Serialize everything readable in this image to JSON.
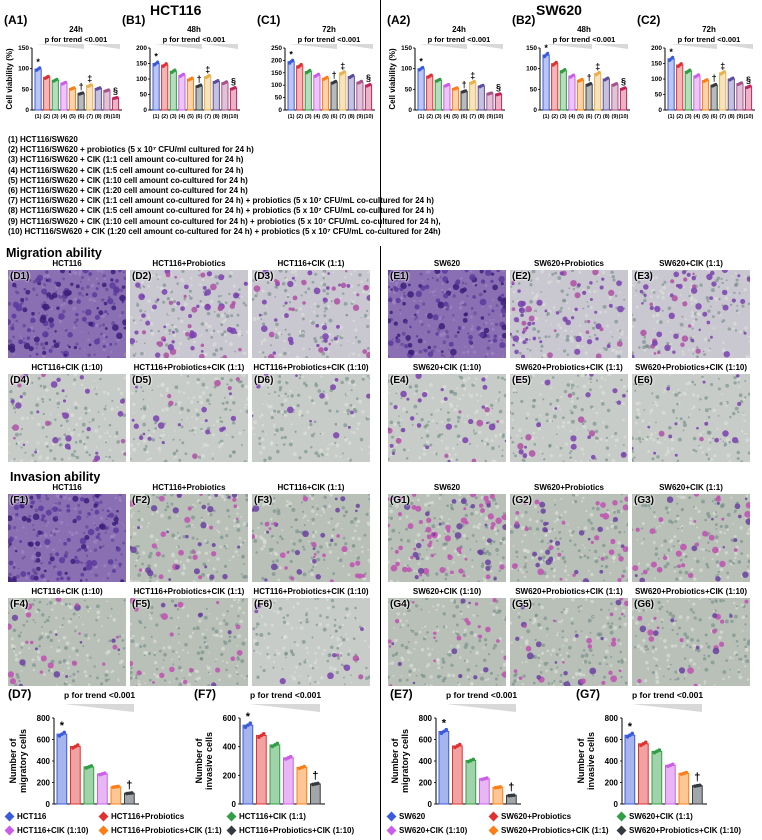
{
  "header": {
    "left_title": "HCT116",
    "right_title": "SW620"
  },
  "viability": {
    "ylabel": "Cell viability (%)",
    "trend_text": "p for trend <0.001",
    "colors": [
      "#3b5bdb",
      "#e03131",
      "#2f9e44",
      "#cc5de8",
      "#fd7e14",
      "#343a40",
      "#e8b04a",
      "#5c4d9e",
      "#a8528b",
      "#c2255c"
    ],
    "panels": [
      {
        "label": "(A1)",
        "time": "24h",
        "ylim": [
          0,
          150
        ],
        "yticks": [
          0,
          50,
          100,
          150
        ],
        "values": [
          99,
          79,
          72,
          65,
          52,
          40,
          59,
          52,
          47,
          29
        ],
        "marks": {
          "0": "*",
          "5": "†",
          "6": "‡",
          "9": "§"
        }
      },
      {
        "label": "(B1)",
        "time": "48h",
        "ylim": [
          0,
          200
        ],
        "yticks": [
          0,
          50,
          100,
          150,
          200
        ],
        "values": [
          150,
          145,
          125,
          112,
          100,
          78,
          108,
          92,
          88,
          70
        ],
        "marks": {
          "0": "*",
          "5": "†",
          "6": "‡",
          "9": "§"
        }
      },
      {
        "label": "(C1)",
        "time": "72h",
        "ylim": [
          0,
          250
        ],
        "yticks": [
          0,
          50,
          100,
          150,
          200,
          250
        ],
        "values": [
          195,
          178,
          155,
          140,
          128,
          112,
          150,
          135,
          112,
          100
        ],
        "marks": {
          "0": "*",
          "5": "†",
          "6": "‡",
          "9": "§"
        }
      },
      {
        "label": "(A2)",
        "time": "24h",
        "ylim": [
          0,
          150
        ],
        "yticks": [
          0,
          50,
          100,
          150
        ],
        "values": [
          100,
          82,
          72,
          60,
          52,
          45,
          67,
          58,
          40,
          38
        ],
        "marks": {
          "0": "*",
          "5": "†",
          "6": "‡",
          "9": "§"
        }
      },
      {
        "label": "(B2)",
        "time": "48h",
        "ylim": [
          0,
          150
        ],
        "yticks": [
          0,
          50,
          100,
          150
        ],
        "values": [
          133,
          112,
          95,
          82,
          72,
          62,
          88,
          75,
          62,
          52
        ],
        "marks": {
          "0": "*",
          "5": "†",
          "6": "‡",
          "9": "§"
        }
      },
      {
        "label": "(C2)",
        "time": "72h",
        "ylim": [
          0,
          200
        ],
        "yticks": [
          0,
          50,
          100,
          150,
          200
        ],
        "values": [
          165,
          145,
          125,
          110,
          95,
          80,
          120,
          100,
          85,
          75
        ],
        "marks": {
          "0": "*",
          "5": "†",
          "6": "‡",
          "9": "§"
        }
      }
    ],
    "xticks": [
      "(1)",
      "(2)",
      "(3)",
      "(4)",
      "(5)",
      "(6)",
      "(7)",
      "(8)",
      "(9)",
      "(10)"
    ]
  },
  "legend_lines": [
    "(1) HCT116/SW620",
    "(2) HCT116/SW620 + probiotics (5 x 10⁷ CFU/ml cultured for 24 h)",
    "(3) HCT116/SW620 + CIK (1:1 cell amount co-cultured for 24 h)",
    "(4) HCT116/SW620 + CIK (1:5 cell amount co-cultured for 24 h)",
    "(5) HCT116/SW620 + CIK (1:10 cell amount co-cultured for 24 h)",
    "(6) HCT116/SW620 + CIK (1:20 cell amount co-cultured for 24 h)",
    "(7) HCT116/SW620 + CIK (1:1 cell amount co-cultured for 24 h) + probiotics (5 x 10⁷ CFU/mL co-cultured for 24 h)",
    "(8) HCT116/SW620 + CIK (1:5 cell amount co-cultured for 24 h) + probiotics (5 x 10⁷ CFU/mL co-cultured for 24 h)",
    "(9) HCT116/SW620 + CIK (1:10 cell amount co-cultured for 24 h) + probiotics (5 x 10⁷ CFU/mL co-cultured for 24 h),",
    "(10) HCT116/SW620 + CIK (1:20 cell amount co-cultured for 24 h) + probiotics (5 x 10⁷ CFU/mL co-cultured for 24h)"
  ],
  "migration": {
    "title": "Migration ability",
    "left": [
      {
        "label": "(D1)",
        "caption": "HCT116",
        "density": 0.95,
        "tone": "dense"
      },
      {
        "label": "(D2)",
        "caption": "HCT116+Probiotics",
        "density": 0.55,
        "tone": "mid"
      },
      {
        "label": "(D3)",
        "caption": "HCT116+CIK (1:1)",
        "density": 0.45,
        "tone": "mid"
      },
      {
        "label": "(D4)",
        "caption": "HCT116+CIK (1:10)",
        "density": 0.3,
        "tone": "sparse"
      },
      {
        "label": "(D5)",
        "caption": "HCT116+Probiotics+CIK (1:1)",
        "density": 0.2,
        "tone": "sparse"
      },
      {
        "label": "(D6)",
        "caption": "HCT116+Probiotics+CIK (1:10)",
        "density": 0.12,
        "tone": "sparse"
      }
    ],
    "right": [
      {
        "label": "(E1)",
        "caption": "SW620",
        "density": 0.95,
        "tone": "dense"
      },
      {
        "label": "(E2)",
        "caption": "SW620+Probiotics",
        "density": 0.55,
        "tone": "mid"
      },
      {
        "label": "(E3)",
        "caption": "SW620+CIK (1:1)",
        "density": 0.5,
        "tone": "mid"
      },
      {
        "label": "(E4)",
        "caption": "SW620+CIK (1:10)",
        "density": 0.3,
        "tone": "sparse"
      },
      {
        "label": "(E5)",
        "caption": "SW620+Probiotics+CIK (1:1)",
        "density": 0.2,
        "tone": "sparse"
      },
      {
        "label": "(E6)",
        "caption": "SW620+Probiotics+CIK (1:10)",
        "density": 0.15,
        "tone": "sparse"
      }
    ]
  },
  "invasion": {
    "title": "Invasion ability",
    "left": [
      {
        "label": "(F1)",
        "caption": "HCT116",
        "density": 0.95,
        "tone": "dense"
      },
      {
        "label": "(F2)",
        "caption": "HCT116+Probiotics",
        "density": 0.4,
        "tone": "pink"
      },
      {
        "label": "(F3)",
        "caption": "HCT116+CIK (1:1)",
        "density": 0.35,
        "tone": "pink"
      },
      {
        "label": "(F4)",
        "caption": "HCT116+CIK (1:10)",
        "density": 0.25,
        "tone": "pink"
      },
      {
        "label": "(F5)",
        "caption": "HCT116+Probiotics+CIK (1:1)",
        "density": 0.2,
        "tone": "pink"
      },
      {
        "label": "(F6)",
        "caption": "HCT116+Probiotics+CIK (1:10)",
        "density": 0.1,
        "tone": "sparse"
      }
    ],
    "right": [
      {
        "label": "(G1)",
        "caption": "SW620",
        "density": 0.7,
        "tone": "pink"
      },
      {
        "label": "(G2)",
        "caption": "SW620+Probiotics",
        "density": 0.45,
        "tone": "pink"
      },
      {
        "label": "(G3)",
        "caption": "SW620+CIK (1:1)",
        "density": 0.35,
        "tone": "pink"
      },
      {
        "label": "(G4)",
        "caption": "SW620+CIK (1:10)",
        "density": 0.25,
        "tone": "pink"
      },
      {
        "label": "(G5)",
        "caption": "SW620+Probiotics+CIK (1:1)",
        "density": 0.3,
        "tone": "pink"
      },
      {
        "label": "(G6)",
        "caption": "SW620+Probiotics+CIK (1:10)",
        "density": 0.2,
        "tone": "pink"
      }
    ]
  },
  "chart_data": [
    {
      "type": "bar",
      "label": "(D7)",
      "title": "p for trend <0.001",
      "ylabel": "Number of migratory cells",
      "ylim": [
        0,
        800
      ],
      "yticks": [
        0,
        200,
        400,
        600,
        800
      ],
      "values": [
        650,
        535,
        345,
        280,
        160,
        100
      ],
      "marks": {
        "0": "*",
        "5": "†"
      }
    },
    {
      "type": "bar",
      "label": "(F7)",
      "title": "p for trend <0.001",
      "ylabel": "Number of invasive cells",
      "ylim": [
        0,
        600
      ],
      "yticks": [
        0,
        200,
        400,
        600
      ],
      "values": [
        550,
        478,
        412,
        322,
        255,
        140
      ],
      "marks": {
        "0": "*",
        "5": "†"
      }
    },
    {
      "type": "bar",
      "label": "(E7)",
      "title": "p for trend <0.001",
      "ylabel": "Number of migratory cells",
      "ylim": [
        0,
        800
      ],
      "yticks": [
        0,
        200,
        400,
        600,
        800
      ],
      "values": [
        675,
        540,
        405,
        235,
        155,
        80
      ],
      "marks": {
        "0": "*",
        "5": "†"
      }
    },
    {
      "type": "bar",
      "label": "(G7)",
      "title": "p for trend <0.001",
      "ylabel": "Number of invasive cells",
      "ylim": [
        0,
        800
      ],
      "yticks": [
        0,
        200,
        400,
        600,
        800
      ],
      "values": [
        640,
        560,
        490,
        360,
        285,
        170
      ],
      "marks": {
        "0": "*",
        "5": "†"
      }
    }
  ],
  "bottom_colors": [
    "#3b5bdb",
    "#e03131",
    "#2f9e44",
    "#cc5de8",
    "#fd7e14",
    "#343a40"
  ],
  "bottom_legend": {
    "left": [
      "HCT116",
      "HCT116+Probiotics",
      "HCT116+CIK (1:1)",
      "HCT116+CIK (1:10)",
      "HCT116+Probiotics+CIK (1:1)",
      "HCT116+Probiotics+CIK (1:10)"
    ],
    "right": [
      "SW620",
      "SW620+Probiotics",
      "SW620+CIK (1:1)",
      "SW620+CIK (1:10)",
      "SW620+Probiotics+CIK (1:1)",
      "SW620+Probiotics+CIK (1:10)"
    ]
  }
}
